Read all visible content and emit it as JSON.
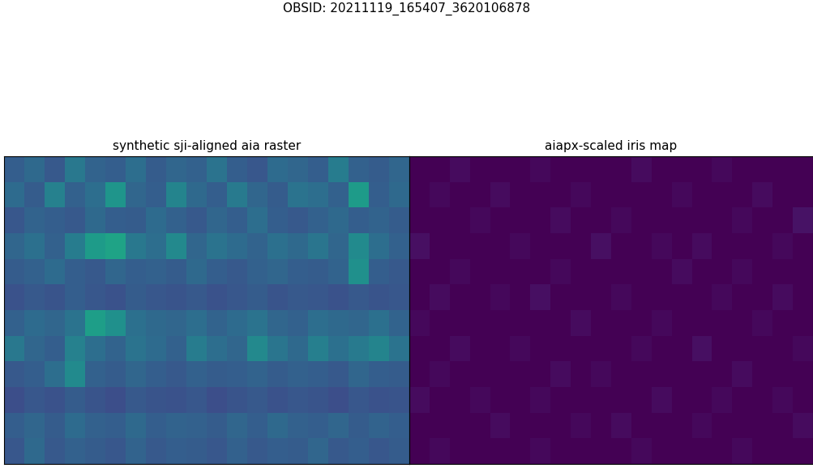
{
  "title": "OBSID: 20211119_165407_3620106878",
  "chart_data": [
    {
      "type": "heatmap",
      "title": "synthetic sji-aligned aia raster",
      "tick_labels": false,
      "clim": [
        0,
        1
      ],
      "cells": [
        [
          0.3,
          0.34,
          0.28,
          0.4,
          0.32,
          0.3,
          0.36,
          0.29,
          0.33,
          0.31,
          0.38,
          0.3,
          0.27,
          0.35,
          0.33,
          0.3,
          0.42,
          0.31,
          0.29,
          0.33
        ],
        [
          0.35,
          0.29,
          0.44,
          0.31,
          0.36,
          0.52,
          0.33,
          0.3,
          0.45,
          0.34,
          0.3,
          0.41,
          0.33,
          0.29,
          0.38,
          0.36,
          0.31,
          0.55,
          0.3,
          0.34
        ],
        [
          0.27,
          0.32,
          0.3,
          0.28,
          0.34,
          0.3,
          0.29,
          0.35,
          0.31,
          0.28,
          0.33,
          0.3,
          0.36,
          0.3,
          0.28,
          0.31,
          0.34,
          0.3,
          0.32,
          0.29
        ],
        [
          0.33,
          0.37,
          0.31,
          0.42,
          0.55,
          0.58,
          0.4,
          0.36,
          0.47,
          0.33,
          0.38,
          0.35,
          0.32,
          0.37,
          0.34,
          0.39,
          0.33,
          0.48,
          0.36,
          0.31
        ],
        [
          0.29,
          0.31,
          0.35,
          0.3,
          0.28,
          0.33,
          0.3,
          0.31,
          0.29,
          0.34,
          0.3,
          0.28,
          0.31,
          0.33,
          0.3,
          0.29,
          0.32,
          0.5,
          0.3,
          0.28
        ],
        [
          0.25,
          0.28,
          0.26,
          0.3,
          0.27,
          0.25,
          0.29,
          0.27,
          0.26,
          0.28,
          0.25,
          0.27,
          0.29,
          0.26,
          0.28,
          0.27,
          0.25,
          0.28,
          0.26,
          0.27
        ],
        [
          0.31,
          0.35,
          0.33,
          0.38,
          0.56,
          0.5,
          0.37,
          0.34,
          0.33,
          0.36,
          0.32,
          0.35,
          0.38,
          0.33,
          0.31,
          0.36,
          0.34,
          0.33,
          0.37,
          0.32
        ],
        [
          0.4,
          0.33,
          0.3,
          0.44,
          0.36,
          0.32,
          0.38,
          0.35,
          0.31,
          0.42,
          0.36,
          0.33,
          0.47,
          0.39,
          0.34,
          0.43,
          0.37,
          0.41,
          0.45,
          0.38
        ],
        [
          0.28,
          0.3,
          0.36,
          0.48,
          0.31,
          0.29,
          0.33,
          0.3,
          0.28,
          0.31,
          0.29,
          0.3,
          0.32,
          0.29,
          0.31,
          0.3,
          0.28,
          0.33,
          0.3,
          0.29
        ],
        [
          0.24,
          0.27,
          0.25,
          0.29,
          0.26,
          0.24,
          0.28,
          0.26,
          0.25,
          0.27,
          0.24,
          0.26,
          0.28,
          0.25,
          0.27,
          0.26,
          0.24,
          0.27,
          0.25,
          0.26
        ],
        [
          0.3,
          0.33,
          0.29,
          0.35,
          0.31,
          0.3,
          0.34,
          0.3,
          0.32,
          0.31,
          0.29,
          0.33,
          0.3,
          0.34,
          0.31,
          0.3,
          0.33,
          0.29,
          0.32,
          0.3
        ],
        [
          0.27,
          0.34,
          0.28,
          0.31,
          0.29,
          0.27,
          0.32,
          0.28,
          0.3,
          0.29,
          0.27,
          0.31,
          0.28,
          0.3,
          0.29,
          0.33,
          0.28,
          0.3,
          0.27,
          0.29
        ]
      ]
    },
    {
      "type": "heatmap",
      "title": "aiapx-scaled iris map",
      "tick_labels": false,
      "clim": [
        0,
        1
      ],
      "cells": [
        [
          0.0,
          0.0,
          0.03,
          0.0,
          0.0,
          0.0,
          0.02,
          0.0,
          0.0,
          0.0,
          0.0,
          0.03,
          0.0,
          0.0,
          0.0,
          0.02,
          0.0,
          0.0,
          0.0,
          0.0
        ],
        [
          0.0,
          0.02,
          0.0,
          0.0,
          0.03,
          0.0,
          0.0,
          0.0,
          0.02,
          0.0,
          0.0,
          0.0,
          0.0,
          0.02,
          0.0,
          0.0,
          0.0,
          0.03,
          0.0,
          0.0
        ],
        [
          0.0,
          0.0,
          0.0,
          0.02,
          0.0,
          0.0,
          0.0,
          0.03,
          0.0,
          0.0,
          0.02,
          0.0,
          0.0,
          0.0,
          0.0,
          0.0,
          0.02,
          0.0,
          0.0,
          0.05
        ],
        [
          0.04,
          0.0,
          0.0,
          0.0,
          0.0,
          0.02,
          0.0,
          0.0,
          0.0,
          0.04,
          0.0,
          0.0,
          0.02,
          0.0,
          0.03,
          0.0,
          0.0,
          0.0,
          0.02,
          0.0
        ],
        [
          0.0,
          0.0,
          0.02,
          0.0,
          0.0,
          0.0,
          0.0,
          0.02,
          0.0,
          0.0,
          0.0,
          0.0,
          0.0,
          0.03,
          0.0,
          0.0,
          0.02,
          0.0,
          0.0,
          0.0
        ],
        [
          0.0,
          0.03,
          0.0,
          0.0,
          0.02,
          0.0,
          0.04,
          0.0,
          0.0,
          0.0,
          0.02,
          0.0,
          0.0,
          0.0,
          0.0,
          0.02,
          0.0,
          0.0,
          0.03,
          0.0
        ],
        [
          0.02,
          0.0,
          0.0,
          0.0,
          0.0,
          0.0,
          0.0,
          0.0,
          0.03,
          0.0,
          0.0,
          0.0,
          0.02,
          0.0,
          0.0,
          0.0,
          0.0,
          0.02,
          0.0,
          0.0
        ],
        [
          0.0,
          0.0,
          0.03,
          0.0,
          0.0,
          0.02,
          0.0,
          0.0,
          0.0,
          0.0,
          0.0,
          0.02,
          0.0,
          0.0,
          0.04,
          0.0,
          0.0,
          0.0,
          0.0,
          0.02
        ],
        [
          0.0,
          0.02,
          0.0,
          0.0,
          0.0,
          0.0,
          0.0,
          0.03,
          0.0,
          0.02,
          0.0,
          0.0,
          0.0,
          0.0,
          0.0,
          0.0,
          0.03,
          0.0,
          0.0,
          0.0
        ],
        [
          0.03,
          0.0,
          0.0,
          0.02,
          0.0,
          0.0,
          0.02,
          0.0,
          0.0,
          0.0,
          0.0,
          0.0,
          0.03,
          0.0,
          0.0,
          0.02,
          0.0,
          0.0,
          0.02,
          0.0
        ],
        [
          0.0,
          0.0,
          0.0,
          0.0,
          0.03,
          0.0,
          0.0,
          0.0,
          0.02,
          0.0,
          0.03,
          0.0,
          0.0,
          0.0,
          0.02,
          0.0,
          0.0,
          0.0,
          0.0,
          0.03
        ],
        [
          0.0,
          0.02,
          0.0,
          0.0,
          0.0,
          0.0,
          0.02,
          0.0,
          0.0,
          0.0,
          0.0,
          0.02,
          0.0,
          0.0,
          0.0,
          0.0,
          0.02,
          0.0,
          0.0,
          0.0
        ]
      ]
    }
  ]
}
